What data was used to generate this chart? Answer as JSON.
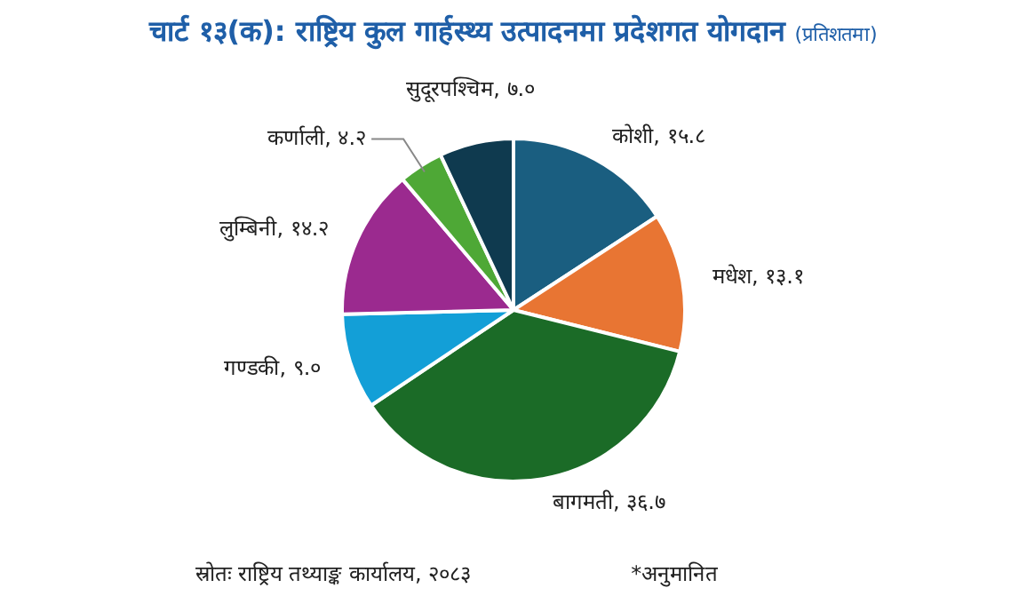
{
  "chart_data": {
    "type": "pie",
    "title": "चार्ट १३(क): राष्ट्रिय कुल गार्हस्थ्य उत्पादनमा प्रदेशगत योगदान",
    "subtitle": "(प्रतिशतमा)",
    "categories": [
      "कोशी",
      "मधेश",
      "बागमती",
      "गण्डकी",
      "लुम्बिनी",
      "कर्णाली",
      "सुदूरपश्चिम"
    ],
    "values": [
      15.8,
      13.1,
      36.7,
      9.0,
      14.2,
      4.2,
      7.0
    ],
    "colors": [
      "#1a5e80",
      "#e87533",
      "#1b6b27",
      "#139fd7",
      "#9b2a8f",
      "#4ea836",
      "#0f3a4f"
    ],
    "value_labels": [
      "१५.८",
      "१३.१",
      "३६.७",
      "९.०",
      "१४.२",
      "४.२",
      "७.०"
    ],
    "legend": false,
    "annotations": [
      "स्रोतः राष्ट्रिय तथ्याङ्क कार्यालय, २०८३",
      "*अनुमानित"
    ]
  }
}
